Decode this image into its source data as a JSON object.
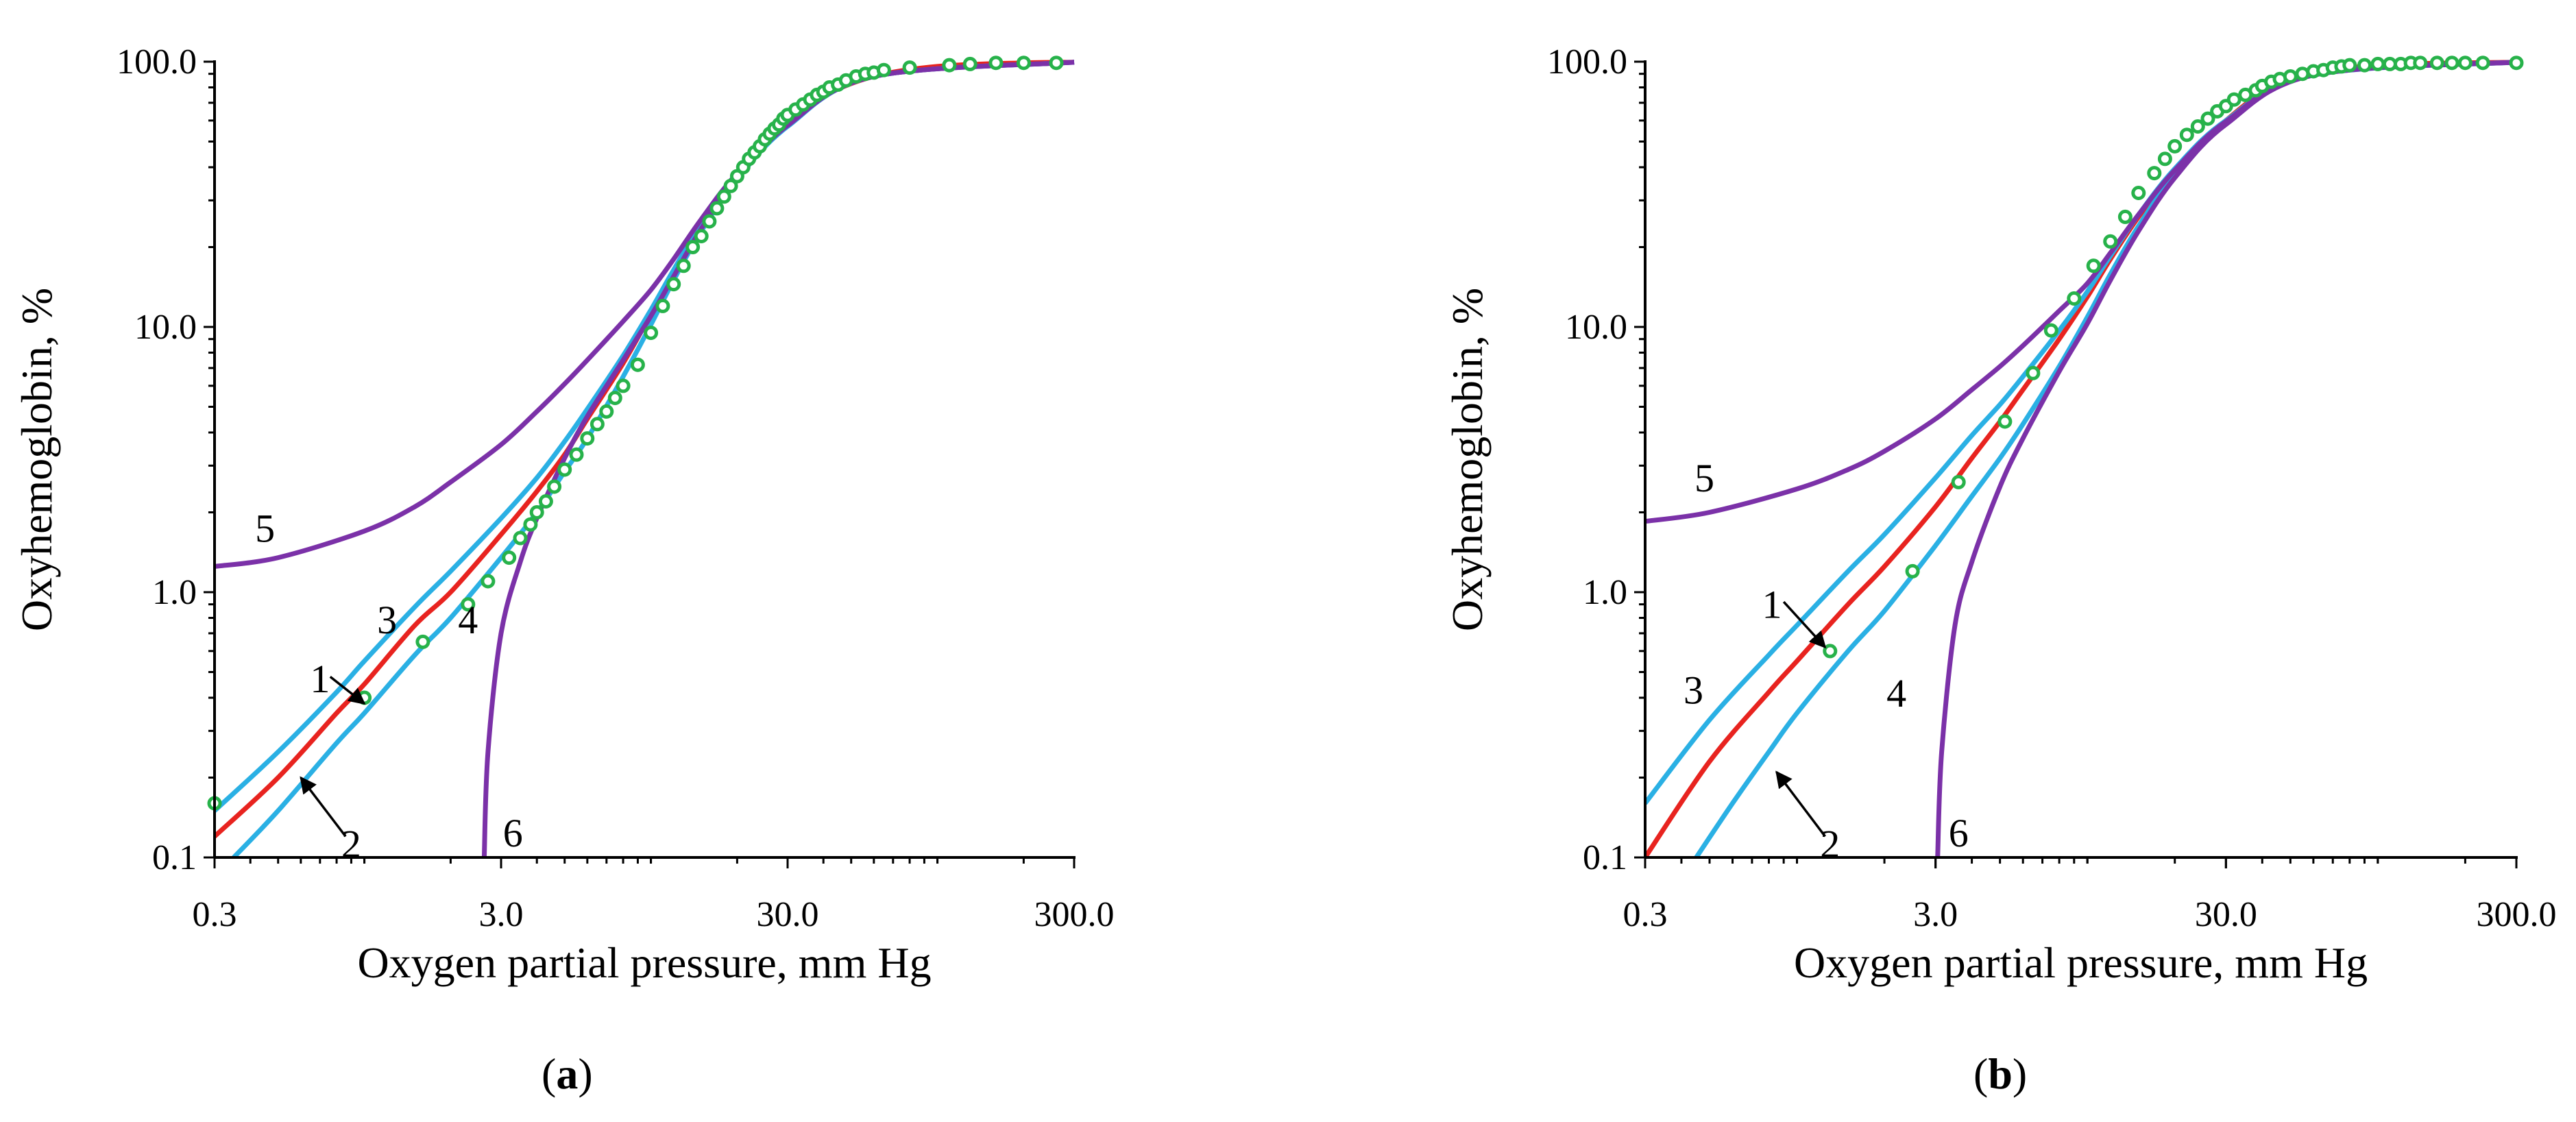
{
  "figure": {
    "panel_tags": {
      "a": "a",
      "b": "b"
    }
  },
  "colors": {
    "curve_1": "#e8231f",
    "curves_2_3_4": "#2ab0e4",
    "curves_5_6": "#7b31a8",
    "data_points": "#27b24a"
  },
  "chart_data": [
    {
      "panel": "a",
      "type": "line",
      "xscale": "log",
      "yscale": "log",
      "xlim": [
        0.3,
        300.0
      ],
      "ylim": [
        0.1,
        100.0
      ],
      "xlabel": "Oxygen partial pressure, mm Hg",
      "ylabel": "Oxyhemoglobin, %",
      "xticks": [
        0.3,
        3.0,
        30.0,
        300.0
      ],
      "xtick_labels": [
        "0.3",
        "3.0",
        "30.0",
        "300.0"
      ],
      "yticks": [
        0.1,
        1.0,
        10.0,
        100.0
      ],
      "ytick_labels": [
        "0.1",
        "1.0",
        "10.0",
        "100.0"
      ],
      "curve_labels": [
        "1",
        "2",
        "3",
        "4",
        "5",
        "6"
      ],
      "series": [
        {
          "name": "1",
          "color": "red",
          "x": [
            0.3,
            0.5,
            0.8,
            1.0,
            1.5,
            2.0,
            3.0,
            4.0,
            5.0,
            6.0,
            8.0,
            10.0,
            12.0,
            15.0,
            20.0,
            25.0,
            30.0,
            40.0,
            60.0,
            100.0,
            200.0,
            300.0
          ],
          "y": [
            0.12,
            0.2,
            0.35,
            0.45,
            0.75,
            1.0,
            1.65,
            2.4,
            3.3,
            4.5,
            7.3,
            11.2,
            16.0,
            24.0,
            37.0,
            48.0,
            58.0,
            74.0,
            88.0,
            96.0,
            99.0,
            99.5
          ]
        },
        {
          "name": "2",
          "color": "cyan",
          "x": [
            0.35,
            0.5,
            0.8,
            1.0,
            1.5,
            2.0,
            3.0,
            4.0,
            5.0,
            6.0,
            8.0,
            10.0,
            12.0,
            15.0,
            20.0,
            30.0,
            60.0,
            300.0
          ],
          "y": [
            0.1,
            0.15,
            0.27,
            0.35,
            0.58,
            0.8,
            1.35,
            2.0,
            2.85,
            3.8,
            6.5,
            10.2,
            15.0,
            23.0,
            36.0,
            57.0,
            88.0,
            99.5
          ]
        },
        {
          "name": "3",
          "color": "cyan",
          "x": [
            0.3,
            0.5,
            0.8,
            1.0,
            1.5,
            2.0,
            3.0,
            4.0,
            5.0,
            6.0,
            8.0,
            10.0,
            12.0,
            15.0,
            20.0,
            30.0,
            60.0,
            300.0
          ],
          "y": [
            0.15,
            0.25,
            0.42,
            0.55,
            0.88,
            1.2,
            1.9,
            2.7,
            3.7,
            4.9,
            7.8,
            11.6,
            16.4,
            24.5,
            37.5,
            58.0,
            88.0,
            99.5
          ]
        },
        {
          "name": "5",
          "color": "purple",
          "x": [
            0.3,
            0.5,
            1.0,
            1.5,
            2.0,
            3.0,
            4.0,
            5.0,
            6.0,
            8.0,
            10.0,
            12.0,
            15.0,
            20.0,
            30.0,
            60.0,
            300.0
          ],
          "y": [
            1.25,
            1.35,
            1.7,
            2.1,
            2.6,
            3.6,
            4.8,
            6.1,
            7.5,
            10.5,
            13.8,
            18.0,
            25.5,
            38.0,
            58.0,
            88.0,
            99.5
          ]
        },
        {
          "name": "6",
          "color": "purple",
          "x": [
            2.62,
            2.7,
            3.0,
            3.5,
            4.0,
            5.0,
            6.0,
            8.0,
            10.0,
            12.0,
            15.0,
            20.0,
            30.0,
            60.0,
            300.0
          ],
          "y": [
            0.1,
            0.25,
            0.7,
            1.3,
            1.9,
            3.2,
            4.6,
            7.5,
            11.0,
            15.5,
            23.5,
            36.5,
            57.5,
            88.0,
            99.5
          ]
        }
      ],
      "points": {
        "x": [
          0.3,
          1.0,
          1.6,
          2.3,
          2.7,
          3.2,
          3.5,
          3.8,
          4.0,
          4.3,
          4.6,
          5.0,
          5.5,
          6.0,
          6.5,
          7.0,
          7.5,
          8.0,
          9.0,
          10.0,
          11.0,
          12.0,
          13.0,
          14.0,
          15.0,
          16.0,
          17.0,
          18.0,
          19.0,
          20.0,
          21.0,
          22.0,
          23.0,
          24.0,
          25.0,
          26.0,
          27.0,
          28.0,
          29.0,
          30.0,
          32.0,
          34.0,
          36.0,
          38.0,
          40.0,
          42.0,
          45.0,
          48.0,
          52.0,
          56.0,
          60.0,
          65.0,
          80.0,
          110.0,
          130.0,
          160.0,
          200.0,
          260.0
        ],
        "y": [
          0.16,
          0.4,
          0.65,
          0.9,
          1.1,
          1.35,
          1.6,
          1.8,
          2.0,
          2.2,
          2.5,
          2.9,
          3.3,
          3.8,
          4.3,
          4.8,
          5.4,
          6.0,
          7.2,
          9.5,
          12.0,
          14.5,
          17.0,
          20.0,
          22.0,
          25.0,
          28.0,
          31.0,
          34.0,
          37.0,
          40.0,
          43.0,
          45.5,
          48.0,
          51.0,
          53.5,
          56.0,
          58.0,
          61.0,
          63.0,
          66.0,
          69.0,
          72.0,
          75.0,
          77.0,
          80.0,
          82.0,
          85.0,
          88.0,
          90.0,
          91.0,
          93.0,
          95.0,
          97.0,
          98.0,
          99.0,
          99.0,
          99.0
        ]
      }
    },
    {
      "panel": "b",
      "type": "line",
      "xscale": "log",
      "yscale": "log",
      "xlim": [
        0.3,
        300.0
      ],
      "ylim": [
        0.1,
        100.0
      ],
      "xlabel": "Oxygen partial pressure, mm Hg",
      "ylabel": "Oxyhemoglobin, %",
      "xticks": [
        0.3,
        3.0,
        30.0,
        300.0
      ],
      "xtick_labels": [
        "0.3",
        "3.0",
        "30.0",
        "300.0"
      ],
      "yticks": [
        0.1,
        1.0,
        10.0,
        100.0
      ],
      "ytick_labels": [
        "0.1",
        "1.0",
        "10.0",
        "100.0"
      ],
      "curve_labels": [
        "1",
        "2",
        "3",
        "4",
        "5",
        "6"
      ],
      "series": [
        {
          "name": "1",
          "color": "red",
          "x": [
            0.3,
            0.5,
            0.8,
            1.0,
            1.5,
            2.0,
            3.0,
            4.0,
            5.0,
            6.0,
            8.0,
            10.0,
            12.0,
            15.0,
            20.0,
            25.0,
            30.0,
            40.0,
            60.0,
            100.0,
            200.0,
            300.0
          ],
          "y": [
            0.1,
            0.23,
            0.42,
            0.55,
            0.9,
            1.25,
            2.1,
            3.2,
            4.4,
            5.8,
            9.0,
            13.0,
            18.0,
            26.0,
            39.0,
            50.0,
            60.0,
            76.0,
            90.0,
            97.0,
            99.0,
            99.5
          ]
        },
        {
          "name": "3",
          "color": "cyan",
          "x": [
            0.3,
            0.5,
            0.8,
            1.0,
            1.5,
            2.0,
            3.0,
            4.0,
            5.0,
            6.0,
            8.0,
            10.0,
            12.0,
            15.0,
            20.0,
            30.0,
            60.0,
            300.0
          ],
          "y": [
            0.16,
            0.33,
            0.58,
            0.75,
            1.2,
            1.65,
            2.7,
            3.9,
            5.1,
            6.5,
            9.7,
            13.6,
            18.5,
            26.5,
            39.5,
            60.0,
            90.0,
            99.5
          ]
        },
        {
          "name": "4",
          "color": "cyan",
          "x": [
            0.45,
            0.6,
            0.8,
            1.0,
            1.5,
            2.0,
            3.0,
            4.0,
            5.0,
            6.0,
            8.0,
            10.0,
            12.0,
            15.0,
            20.0,
            30.0,
            60.0,
            300.0
          ],
          "y": [
            0.1,
            0.16,
            0.25,
            0.35,
            0.6,
            0.85,
            1.5,
            2.3,
            3.2,
            4.3,
            7.1,
            10.9,
            15.8,
            24.0,
            37.5,
            59.0,
            89.0,
            99.5
          ]
        },
        {
          "name": "5",
          "color": "purple",
          "x": [
            0.3,
            0.5,
            1.0,
            1.5,
            2.0,
            3.0,
            4.0,
            5.0,
            6.0,
            8.0,
            10.0,
            12.0,
            15.0,
            20.0,
            30.0,
            60.0,
            300.0
          ],
          "y": [
            1.85,
            2.0,
            2.45,
            2.9,
            3.4,
            4.5,
            5.8,
            7.1,
            8.5,
            11.5,
            14.6,
            19.0,
            26.5,
            39.0,
            59.5,
            90.0,
            99.5
          ]
        },
        {
          "name": "6",
          "color": "purple",
          "x": [
            3.05,
            3.15,
            3.5,
            4.0,
            5.0,
            6.0,
            8.0,
            10.0,
            12.0,
            15.0,
            20.0,
            30.0,
            60.0,
            300.0
          ],
          "y": [
            0.1,
            0.25,
            0.75,
            1.3,
            2.5,
            3.8,
            6.8,
            10.3,
            15.0,
            23.0,
            36.5,
            58.0,
            89.0,
            99.5
          ]
        }
      ],
      "points": {
        "x": [
          1.3,
          2.5,
          3.6,
          5.2,
          6.5,
          7.5,
          9.0,
          10.5,
          12.0,
          13.5,
          15.0,
          17.0,
          18.5,
          20.0,
          22.0,
          24.0,
          26.0,
          28.0,
          30.0,
          32.0,
          35.0,
          38.0,
          40.0,
          43.0,
          46.0,
          50.0,
          55.0,
          60.0,
          65.0,
          70.0,
          75.0,
          80.0,
          90.0,
          100.0,
          110.0,
          120.0,
          130.0,
          140.0,
          160.0,
          180.0,
          200.0,
          230.0,
          300.0
        ],
        "y": [
          0.6,
          1.2,
          2.6,
          4.4,
          6.7,
          9.7,
          12.8,
          17.0,
          21.0,
          26.0,
          32.0,
          38.0,
          43.0,
          48.0,
          53.0,
          57.0,
          61.0,
          65.0,
          68.0,
          72.0,
          75.0,
          78.0,
          81.0,
          84.0,
          86.0,
          88.0,
          90.0,
          92.0,
          93.0,
          95.0,
          96.0,
          97.0,
          97.0,
          98.0,
          98.0,
          98.0,
          99.0,
          99.0,
          99.0,
          99.0,
          99.0,
          99.0,
          99.0
        ]
      }
    }
  ]
}
